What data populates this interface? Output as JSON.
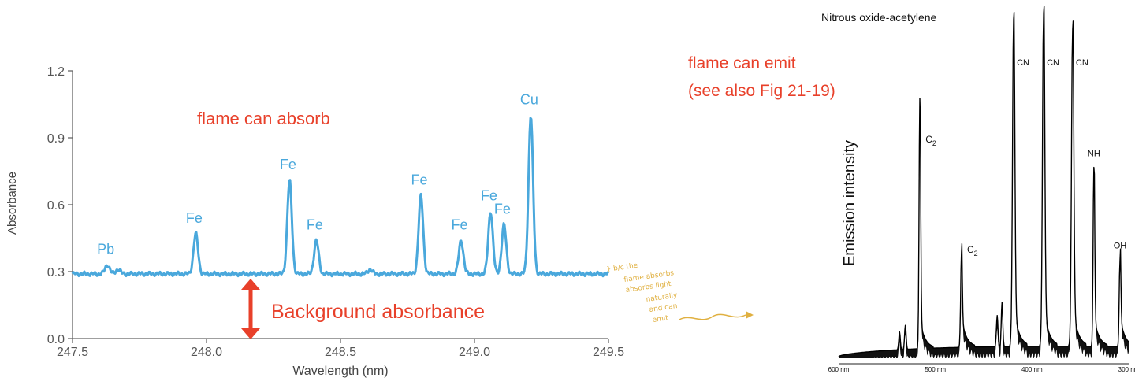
{
  "chart_data": [
    {
      "type": "line",
      "xlabel": "Wavelength (nm)",
      "ylabel": "Absorbance",
      "xlim": [
        247.5,
        249.5
      ],
      "ylim": [
        0.0,
        1.2
      ],
      "xticks": [
        247.5,
        248.0,
        248.5,
        249.0,
        249.5
      ],
      "xtick_labels": [
        "247.5",
        "248.0",
        "248.5",
        "249.0",
        "249.5"
      ],
      "yticks": [
        0.0,
        0.3,
        0.6,
        0.9,
        1.2
      ],
      "ytick_labels": [
        "0.0",
        "0.3",
        "0.6",
        "0.9",
        "1.2"
      ],
      "grid": false,
      "baseline": 0.29,
      "series": [
        {
          "color": "#4aa8dc",
          "peaks": [
            {
              "x": 247.63,
              "y": 0.33,
              "label": "Pb"
            },
            {
              "x": 247.67,
              "y": 0.31,
              "label": ""
            },
            {
              "x": 247.96,
              "y": 0.47,
              "label": "Fe"
            },
            {
              "x": 248.31,
              "y": 0.71,
              "label": "Fe"
            },
            {
              "x": 248.41,
              "y": 0.44,
              "label": "Fe"
            },
            {
              "x": 248.61,
              "y": 0.31,
              "label": ""
            },
            {
              "x": 248.8,
              "y": 0.64,
              "label": "Fe"
            },
            {
              "x": 248.95,
              "y": 0.44,
              "label": "Fe"
            },
            {
              "x": 249.06,
              "y": 0.57,
              "label": "Fe"
            },
            {
              "x": 249.11,
              "y": 0.51,
              "label": "Fe"
            },
            {
              "x": 249.21,
              "y": 1.0,
              "label": "Cu"
            }
          ]
        }
      ],
      "annotations": [
        {
          "text": "flame can absorb",
          "color": "#e8402a"
        },
        {
          "text": "Background absorbance",
          "color": "#e8402a"
        }
      ],
      "annotation_marker": {
        "name": "double-arrow",
        "color": "#e8402a",
        "from_y": 0.0,
        "to_y": 0.29
      }
    },
    {
      "type": "line",
      "title": "Nitrous oxide-acetylene",
      "ylabel": "Emission intensity",
      "xlim": [
        600,
        300
      ],
      "x_reversed": true,
      "xticks": [
        600,
        500,
        400,
        300
      ],
      "xtick_labels": [
        "600 nm",
        "500 nm",
        "400 nm",
        "300 nm"
      ],
      "ylim": [
        0,
        1
      ],
      "grid": false,
      "series": [
        {
          "color": "#000000",
          "peaks": [
            {
              "x": 537,
              "y": 0.08,
              "label": ""
            },
            {
              "x": 531,
              "y": 0.1,
              "label": ""
            },
            {
              "x": 516,
              "y": 0.79,
              "label": "C2"
            },
            {
              "x": 473,
              "y": 0.32,
              "label": "C2"
            },
            {
              "x": 436,
              "y": 0.13,
              "label": ""
            },
            {
              "x": 431,
              "y": 0.17,
              "label": ""
            },
            {
              "x": 419,
              "y": 1.03,
              "label": "CN"
            },
            {
              "x": 388,
              "y": 1.05,
              "label": "CN"
            },
            {
              "x": 358,
              "y": 1.0,
              "label": "CN"
            },
            {
              "x": 336,
              "y": 0.58,
              "label": "NH"
            },
            {
              "x": 309,
              "y": 0.3,
              "label": "OH"
            }
          ]
        }
      ],
      "annotations": [
        {
          "text": "flame can emit",
          "color": "#e8402a"
        },
        {
          "text": "(see also Fig 21-19)",
          "color": "#e8402a"
        }
      ]
    }
  ],
  "handwritten_note": {
    "color": "#e0b040",
    "lines": [
      "} b/c the",
      "flame absorbs",
      "absorbs light",
      "naturally",
      "and can",
      "emit"
    ]
  }
}
